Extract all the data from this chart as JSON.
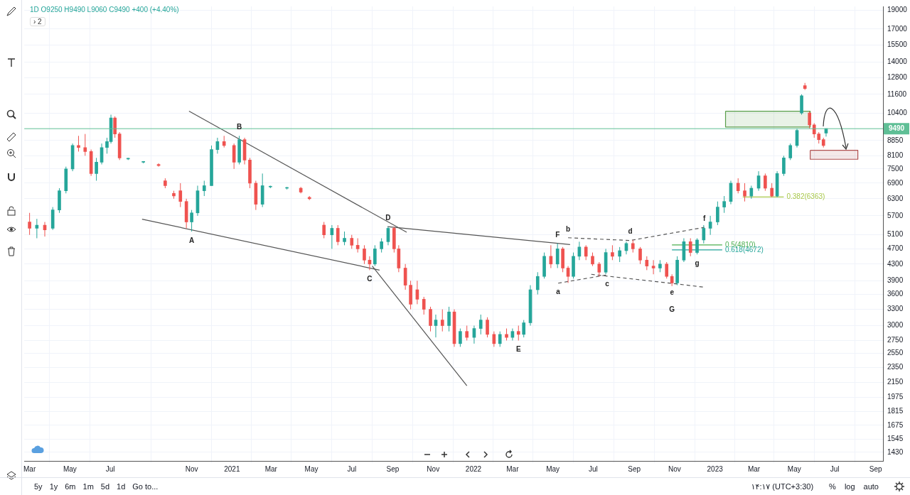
{
  "chart_data": {
    "type": "candlestick",
    "subtitle": "1D  O9250 H9490 L9060 C9490 +400 (+4.40%)",
    "xlim": [
      "2020-02-22",
      "2023-09-12"
    ],
    "xticks": [
      {
        "value": "2020-03-01",
        "label": "Mar"
      },
      {
        "value": "2020-05-01",
        "label": "May"
      },
      {
        "value": "2020-07-01",
        "label": "Jul"
      },
      {
        "value": "2020-11-01",
        "label": "Nov"
      },
      {
        "value": "2021-01-01",
        "label": "2021"
      },
      {
        "value": "2021-03-01",
        "label": "Mar"
      },
      {
        "value": "2021-05-01",
        "label": "May"
      },
      {
        "value": "2021-07-01",
        "label": "Jul"
      },
      {
        "value": "2021-09-01",
        "label": "Sep"
      },
      {
        "value": "2021-11-01",
        "label": "Nov"
      },
      {
        "value": "2022-01-01",
        "label": "2022"
      },
      {
        "value": "2022-03-01",
        "label": "Mar"
      },
      {
        "value": "2022-05-01",
        "label": "May"
      },
      {
        "value": "2022-07-01",
        "label": "Jul"
      },
      {
        "value": "2022-09-01",
        "label": "Sep"
      },
      {
        "value": "2022-11-01",
        "label": "Nov"
      },
      {
        "value": "2023-01-01",
        "label": "2023"
      },
      {
        "value": "2023-03-01",
        "label": "Mar"
      },
      {
        "value": "2023-05-01",
        "label": "May"
      },
      {
        "value": "2023-07-01",
        "label": "Jul"
      },
      {
        "value": "2023-09-01",
        "label": "Sep"
      }
    ],
    "ylim": [
      1360,
      19400
    ],
    "log": true,
    "yticks": [
      1430,
      1545,
      1675,
      1815,
      1975,
      2150,
      2350,
      2550,
      2750,
      3000,
      3300,
      3600,
      3900,
      4300,
      4700,
      5100,
      5700,
      6300,
      6900,
      7500,
      8100,
      8850,
      10400,
      11600,
      12800,
      14000,
      15500,
      17000,
      19000
    ],
    "grid": true,
    "legend": false,
    "ref_lines": [
      {
        "axis": "y",
        "value": 9490,
        "label": "9490",
        "color": "#5fbf96"
      }
    ],
    "series": [
      {
        "x": [
          "2020-03-01",
          "2020-03-12",
          "2020-03-24",
          "2020-04-05",
          "2020-04-15",
          "2020-04-25",
          "2020-05-05",
          "2020-05-14",
          "2020-05-24",
          "2020-06-02",
          "2020-06-10",
          "2020-06-18",
          "2020-06-26",
          "2020-07-02",
          "2020-07-08",
          "2020-07-15",
          "2020-07-28",
          "2020-08-20",
          "2020-09-12",
          "2020-09-22",
          "2020-10-05",
          "2020-10-15",
          "2020-10-24",
          "2020-11-01",
          "2020-11-10",
          "2020-11-20",
          "2020-12-01",
          "2020-12-10",
          "2020-12-20",
          "2021-01-04",
          "2021-01-12",
          "2021-01-20",
          "2021-01-28",
          "2021-02-06",
          "2021-02-16",
          "2021-02-28",
          "2021-03-25",
          "2021-04-15",
          "2021-04-28",
          "2021-05-20",
          "2021-06-01",
          "2021-06-10",
          "2021-06-20",
          "2021-07-01",
          "2021-07-10",
          "2021-07-20",
          "2021-07-28",
          "2021-08-05",
          "2021-08-15",
          "2021-08-25",
          "2021-09-03",
          "2021-09-10",
          "2021-09-20",
          "2021-09-28",
          "2021-10-08",
          "2021-10-18",
          "2021-10-28",
          "2021-11-05",
          "2021-11-15",
          "2021-11-25",
          "2021-12-03",
          "2021-12-12",
          "2021-12-22",
          "2022-01-02",
          "2022-01-12",
          "2022-01-22",
          "2022-02-01",
          "2022-02-10",
          "2022-02-20",
          "2022-03-01",
          "2022-03-10",
          "2022-03-18",
          "2022-03-28",
          "2022-04-08",
          "2022-04-18",
          "2022-04-28",
          "2022-05-08",
          "2022-05-16",
          "2022-05-24",
          "2022-06-01",
          "2022-06-10",
          "2022-06-20",
          "2022-06-30",
          "2022-07-10",
          "2022-07-20",
          "2022-07-30",
          "2022-08-10",
          "2022-08-20",
          "2022-08-30",
          "2022-09-10",
          "2022-09-20",
          "2022-09-30",
          "2022-10-10",
          "2022-10-20",
          "2022-10-28",
          "2022-11-05",
          "2022-11-15",
          "2022-11-25",
          "2022-12-05",
          "2022-12-15",
          "2022-12-25",
          "2023-01-05",
          "2023-01-15",
          "2023-01-25",
          "2023-02-05",
          "2023-02-15",
          "2023-02-25",
          "2023-03-08",
          "2023-03-18",
          "2023-03-28",
          "2023-04-05",
          "2023-04-15",
          "2023-04-25",
          "2023-05-05",
          "2023-05-12",
          "2023-05-17",
          "2023-05-24",
          "2023-05-31",
          "2023-06-07",
          "2023-06-14",
          "2023-06-18"
        ],
        "ohlc": [
          [
            5500,
            5800,
            5100,
            5300
          ],
          [
            5300,
            5600,
            5000,
            5400
          ],
          [
            5400,
            5500,
            5050,
            5250
          ],
          [
            5300,
            6000,
            5250,
            5900
          ],
          [
            5900,
            6700,
            5800,
            6600
          ],
          [
            6600,
            7600,
            6500,
            7500
          ],
          [
            7500,
            8700,
            7400,
            8600
          ],
          [
            8600,
            9100,
            8300,
            8500
          ],
          [
            8500,
            9200,
            8100,
            8300
          ],
          [
            8300,
            8400,
            7200,
            7300
          ],
          [
            7300,
            8000,
            7000,
            7800
          ],
          [
            7800,
            8700,
            7700,
            8500
          ],
          [
            8500,
            9000,
            8200,
            8800
          ],
          [
            8800,
            10300,
            8700,
            10100
          ],
          [
            10100,
            10200,
            9000,
            9200
          ],
          [
            9200,
            9300,
            7900,
            8000
          ],
          [
            7950,
            8000,
            7900,
            7950
          ],
          [
            7800,
            7850,
            7750,
            7800
          ],
          [
            7700,
            7750,
            7600,
            7650
          ],
          [
            7000,
            7100,
            6700,
            6800
          ],
          [
            6500,
            6600,
            6300,
            6400
          ],
          [
            6600,
            6900,
            6000,
            6200
          ],
          [
            6200,
            6300,
            5300,
            5500
          ],
          [
            5500,
            5900,
            5200,
            5800
          ],
          [
            5800,
            6800,
            5700,
            6600
          ],
          [
            6600,
            7000,
            6400,
            6800
          ],
          [
            6800,
            8600,
            6800,
            8400
          ],
          [
            8400,
            9000,
            8200,
            8800
          ],
          [
            8800,
            9100,
            8500,
            8600
          ],
          [
            8600,
            8700,
            7500,
            7800
          ],
          [
            7800,
            9100,
            7700,
            8900
          ],
          [
            8900,
            9000,
            7700,
            7900
          ],
          [
            7900,
            8000,
            6700,
            6900
          ],
          [
            6900,
            7000,
            5900,
            6100
          ],
          [
            6100,
            7300,
            6000,
            6800
          ],
          [
            6750,
            6800,
            6700,
            6750
          ],
          [
            6700,
            6750,
            6650,
            6700
          ],
          [
            6700,
            6750,
            6500,
            6550
          ],
          [
            6350,
            6400,
            6250,
            6300
          ],
          [
            5400,
            5500,
            5000,
            5100
          ],
          [
            5100,
            5400,
            4700,
            5300
          ],
          [
            5300,
            5400,
            4800,
            4900
          ],
          [
            4900,
            5200,
            4800,
            5000
          ],
          [
            5000,
            5100,
            4700,
            4800
          ],
          [
            4800,
            5000,
            4600,
            4700
          ],
          [
            4700,
            4800,
            4300,
            4400
          ],
          [
            4400,
            4500,
            4150,
            4300
          ],
          [
            4300,
            4800,
            4250,
            4700
          ],
          [
            4700,
            5000,
            4600,
            4900
          ],
          [
            4900,
            5350,
            4800,
            5300
          ],
          [
            5300,
            5350,
            4600,
            4700
          ],
          [
            4700,
            4800,
            4100,
            4200
          ],
          [
            4200,
            4300,
            3700,
            3800
          ],
          [
            3800,
            3900,
            3300,
            3400
          ],
          [
            3700,
            3900,
            3400,
            3500
          ],
          [
            3500,
            3550,
            3200,
            3300
          ],
          [
            3300,
            3350,
            2900,
            3000
          ],
          [
            3000,
            3200,
            2800,
            3100
          ],
          [
            3100,
            3300,
            2900,
            3000
          ],
          [
            3000,
            3350,
            2900,
            3250
          ],
          [
            3250,
            3300,
            2650,
            2700
          ],
          [
            2700,
            2950,
            2650,
            2900
          ],
          [
            2900,
            3000,
            2750,
            2800
          ],
          [
            2800,
            3000,
            2700,
            2950
          ],
          [
            2950,
            3200,
            2850,
            3100
          ],
          [
            3100,
            3150,
            2800,
            2850
          ],
          [
            2850,
            2900,
            2650,
            2700
          ],
          [
            2700,
            2900,
            2650,
            2850
          ],
          [
            2850,
            2950,
            2750,
            2800
          ],
          [
            2800,
            2950,
            2750,
            2900
          ],
          [
            2900,
            3000,
            2750,
            2850
          ],
          [
            2850,
            3100,
            2800,
            3050
          ],
          [
            3050,
            3800,
            3000,
            3700
          ],
          [
            3700,
            4100,
            3600,
            4000
          ],
          [
            4000,
            4600,
            3950,
            4500
          ],
          [
            4500,
            4800,
            4200,
            4300
          ],
          [
            4300,
            4850,
            4200,
            4700
          ],
          [
            4700,
            4750,
            4100,
            4200
          ],
          [
            4200,
            4250,
            3850,
            4000
          ],
          [
            4000,
            4600,
            3950,
            4500
          ],
          [
            4500,
            4900,
            4400,
            4750
          ],
          [
            4750,
            4800,
            4400,
            4500
          ],
          [
            4500,
            4600,
            4250,
            4300
          ],
          [
            4300,
            4350,
            4000,
            4100
          ],
          [
            4100,
            4700,
            4050,
            4600
          ],
          [
            4600,
            4800,
            4400,
            4500
          ],
          [
            4500,
            4750,
            4350,
            4650
          ],
          [
            4650,
            4900,
            4550,
            4850
          ],
          [
            4850,
            4950,
            4600,
            4700
          ],
          [
            4700,
            4750,
            4300,
            4400
          ],
          [
            4400,
            4500,
            4150,
            4250
          ],
          [
            4250,
            4400,
            4050,
            4200
          ],
          [
            4200,
            4400,
            4100,
            4300
          ],
          [
            4300,
            4350,
            3950,
            4000
          ],
          [
            4000,
            4050,
            3780,
            3850
          ],
          [
            3850,
            4500,
            3800,
            4400
          ],
          [
            4400,
            5000,
            4350,
            4900
          ],
          [
            4900,
            5000,
            4500,
            4600
          ],
          [
            4600,
            5000,
            4550,
            4950
          ],
          [
            4950,
            5400,
            4850,
            5300
          ],
          [
            5300,
            5700,
            5100,
            5500
          ],
          [
            5500,
            6200,
            5400,
            6000
          ],
          [
            6000,
            6400,
            5800,
            6200
          ],
          [
            6200,
            7000,
            6100,
            6900
          ],
          [
            6900,
            7100,
            6500,
            6600
          ],
          [
            6600,
            6900,
            6200,
            6400
          ],
          [
            6400,
            6800,
            6300,
            6700
          ],
          [
            6700,
            7400,
            6600,
            7200
          ],
          [
            7200,
            7300,
            6600,
            6700
          ],
          [
            6700,
            6900,
            6350,
            6400
          ],
          [
            6400,
            7400,
            6350,
            7300
          ],
          [
            7300,
            8100,
            7200,
            8000
          ],
          [
            8000,
            8700,
            7900,
            8600
          ],
          [
            8600,
            9500,
            8500,
            9400
          ],
          [
            10400,
            11600,
            10300,
            11500
          ],
          [
            12200,
            12400,
            11900,
            12000
          ],
          [
            10400,
            10500,
            9500,
            9700
          ],
          [
            9700,
            9800,
            9000,
            9200
          ],
          [
            9200,
            9300,
            8700,
            8900
          ],
          [
            8900,
            9000,
            8500,
            8600
          ],
          [
            9250,
            9490,
            9060,
            9490
          ]
        ],
        "colors": [
          "#ef5350",
          "#26a69a",
          "#ef5350",
          "#26a69a",
          "#26a69a",
          "#26a69a",
          "#26a69a",
          "#ef5350",
          "#ef5350",
          "#ef5350",
          "#26a69a",
          "#26a69a",
          "#26a69a",
          "#26a69a",
          "#ef5350",
          "#ef5350",
          "#26a69a",
          "#26a69a",
          "#ef5350",
          "#ef5350",
          "#ef5350",
          "#ef5350",
          "#ef5350",
          "#26a69a",
          "#26a69a",
          "#26a69a",
          "#26a69a",
          "#26a69a",
          "#ef5350",
          "#ef5350",
          "#26a69a",
          "#ef5350",
          "#ef5350",
          "#ef5350",
          "#26a69a",
          "#26a69a",
          "#26a69a",
          "#ef5350",
          "#ef5350",
          "#ef5350",
          "#26a69a",
          "#ef5350",
          "#26a69a",
          "#ef5350",
          "#ef5350",
          "#ef5350",
          "#ef5350",
          "#26a69a",
          "#26a69a",
          "#26a69a",
          "#ef5350",
          "#ef5350",
          "#ef5350",
          "#ef5350",
          "#ef5350",
          "#ef5350",
          "#ef5350",
          "#26a69a",
          "#ef5350",
          "#26a69a",
          "#ef5350",
          "#26a69a",
          "#ef5350",
          "#26a69a",
          "#26a69a",
          "#ef5350",
          "#ef5350",
          "#26a69a",
          "#ef5350",
          "#26a69a",
          "#ef5350",
          "#26a69a",
          "#26a69a",
          "#26a69a",
          "#26a69a",
          "#ef5350",
          "#26a69a",
          "#ef5350",
          "#ef5350",
          "#26a69a",
          "#26a69a",
          "#ef5350",
          "#ef5350",
          "#ef5350",
          "#26a69a",
          "#ef5350",
          "#26a69a",
          "#26a69a",
          "#ef5350",
          "#ef5350",
          "#ef5350",
          "#ef5350",
          "#26a69a",
          "#ef5350",
          "#ef5350",
          "#26a69a",
          "#26a69a",
          "#ef5350",
          "#26a69a",
          "#26a69a",
          "#26a69a",
          "#26a69a",
          "#26a69a",
          "#26a69a",
          "#ef5350",
          "#ef5350",
          "#26a69a",
          "#26a69a",
          "#ef5350",
          "#ef5350",
          "#26a69a",
          "#26a69a",
          "#26a69a",
          "#26a69a",
          "#26a69a",
          "#ef5350",
          "#ef5350",
          "#ef5350",
          "#ef5350",
          "#ef5350",
          "#26a69a"
        ]
      },
      {
        "type": "line",
        "color": "#555555",
        "x": [
          "2020-10-28",
          "2021-09-22"
        ],
        "values": [
          10510,
          5180
        ]
      },
      {
        "type": "line",
        "color": "#555555",
        "x": [
          "2020-08-18",
          "2021-08-12"
        ],
        "values": [
          5590,
          4150
        ]
      },
      {
        "type": "line",
        "color": "#555555",
        "x": [
          "2021-08-01",
          "2021-12-22"
        ],
        "values": [
          4250,
          2110
        ]
      },
      {
        "type": "line",
        "color": "#555555",
        "x": [
          "2021-08-24",
          "2022-05-27"
        ],
        "values": [
          5350,
          4820
        ]
      },
      {
        "type": "line",
        "color": "#555555",
        "line_style": "dashed",
        "x": [
          "2022-05-24",
          "2022-08-26",
          "2022-12-16"
        ],
        "values": [
          5015,
          4935,
          5330
        ]
      },
      {
        "type": "line",
        "color": "#555555",
        "line_style": "dashed",
        "x": [
          "2022-05-09",
          "2022-07-22"
        ],
        "values": [
          3845,
          4035
        ]
      },
      {
        "type": "line",
        "color": "#555555",
        "line_style": "dashed",
        "x": [
          "2022-06-28",
          "2022-10-28",
          "2022-12-16"
        ],
        "values": [
          4050,
          3841,
          3755
        ]
      },
      {
        "type": "line",
        "name": "0.382(6363)",
        "color": "#a8c84a",
        "x": [
          "2023-02-12",
          "2023-04-15"
        ],
        "values": [
          6363,
          6363
        ]
      },
      {
        "type": "line",
        "name": "0.5(4810)",
        "color": "#4caf50",
        "x": [
          "2022-10-28",
          "2023-01-12"
        ],
        "values": [
          4810,
          4810
        ]
      },
      {
        "type": "line",
        "name": "0.618(4672)",
        "color": "#26a69a",
        "x": [
          "2022-10-28",
          "2023-01-12"
        ],
        "values": [
          4672,
          4672
        ]
      },
      {
        "type": "area",
        "color": "#5a9e4b",
        "x": [
          "2023-01-17",
          "2023-05-25",
          "2023-05-25",
          "2023-01-17",
          "2023-01-17"
        ],
        "values": [
          10510,
          10510,
          9585,
          9585,
          10510
        ]
      },
      {
        "type": "area",
        "color": "#b05050",
        "x": [
          "2023-05-25",
          "2023-08-05",
          "2023-08-05",
          "2023-05-25",
          "2023-05-25"
        ],
        "values": [
          8360,
          8360,
          7935,
          7935,
          8360
        ]
      }
    ],
    "annotations": [
      "› 2",
      "5y",
      "1y",
      "6m",
      "1m",
      "5d",
      "1d",
      "Go to...",
      "۱۴:۱۷ (UTC+3:30)",
      "%",
      "log",
      "auto",
      {
        "text": "A",
        "x": "2020-11-01",
        "y": 5200
      },
      {
        "text": "B",
        "x": "2021-01-12",
        "y": 9100
      },
      {
        "text": "C",
        "x": "2021-07-28",
        "y": 4150
      },
      {
        "text": "D",
        "x": "2021-08-25",
        "y": 5350
      },
      {
        "text": "E",
        "x": "2022-03-10",
        "y": 2750
      },
      {
        "text": "F",
        "x": "2022-05-08",
        "y": 4850
      },
      {
        "text": "e",
        "x": "2022-10-28",
        "y": 3841
      },
      {
        "text": "G",
        "x": "2022-10-28",
        "y": 3780
      },
      {
        "text": "a",
        "x": "2022-05-09",
        "y": 3845
      },
      {
        "text": "b",
        "x": "2022-05-24",
        "y": 5015
      },
      {
        "text": "c",
        "x": "2022-07-22",
        "y": 4035
      },
      {
        "text": "d",
        "x": "2022-08-26",
        "y": 4935
      },
      {
        "text": "f",
        "x": "2022-12-16",
        "y": 5330
      },
      {
        "text": "g",
        "x": "2022-12-05",
        "y": 4550
      }
    ]
  }
}
